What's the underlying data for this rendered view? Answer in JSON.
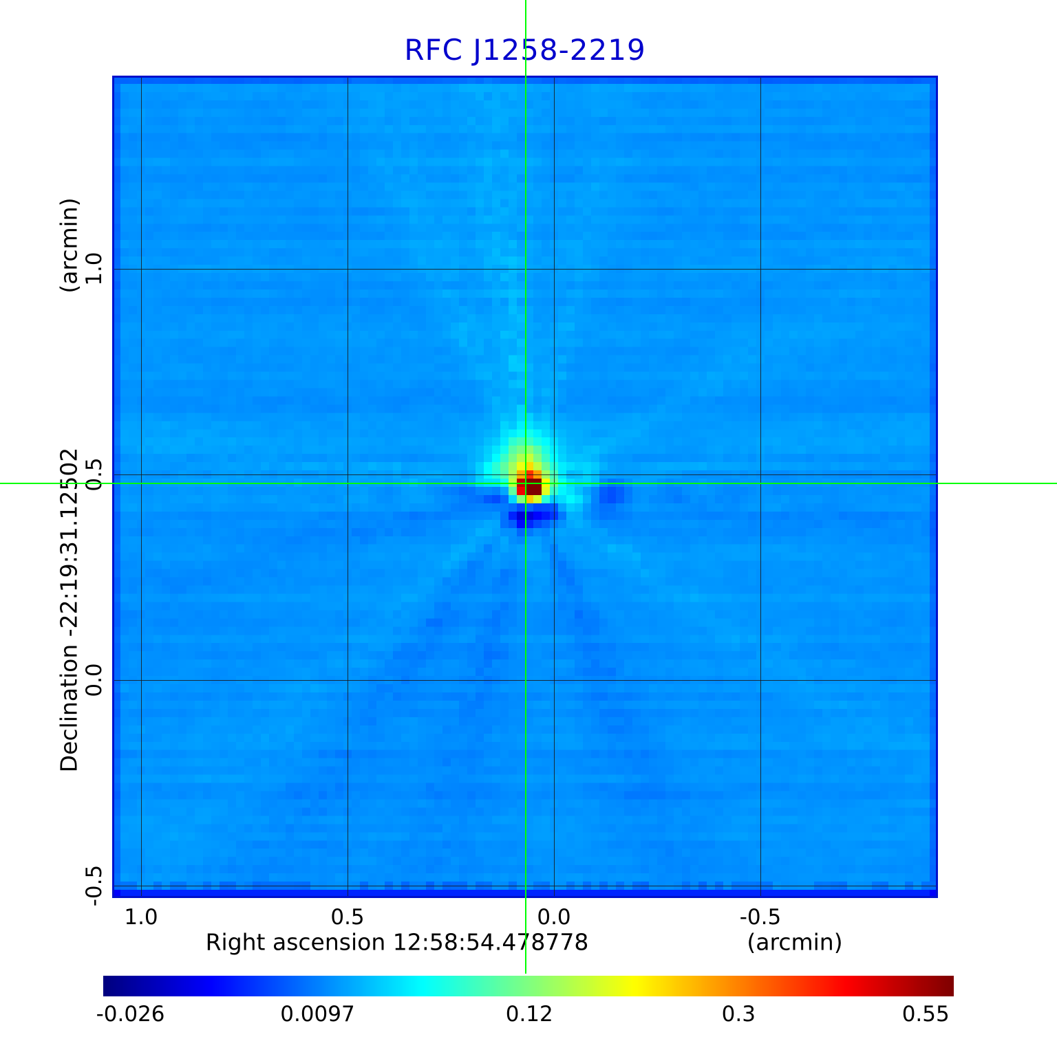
{
  "title": {
    "text": "RFC J1258-2219",
    "color": "#0000CC"
  },
  "x_axis": {
    "label": "Right ascension  12:58:54.478778",
    "unit": "(arcmin)",
    "ticks": [
      "1.0",
      "0.5",
      "0.0",
      "-0.5"
    ]
  },
  "y_axis": {
    "label": "Declination  -22:19:31.12502",
    "unit": "(arcmin)",
    "ticks": [
      "1.0",
      "0.5",
      "0.0",
      "-0.5"
    ]
  },
  "colorbar": {
    "colormap": "jet",
    "tick_labels": [
      "-0.026",
      "0.0097",
      "0.12",
      "0.3",
      "0.55"
    ],
    "tick_positions": [
      0.032,
      0.252,
      0.501,
      0.747,
      0.967
    ]
  },
  "crosshair_color": "#00FF00",
  "chart_data": {
    "type": "heatmap",
    "title": "RFC J1258-2219",
    "xlabel": "Right ascension 12:58:54.478778 (arcmin)",
    "ylabel": "Declination -22:19:31.12502 (arcmin)",
    "x_ticks": [
      1.0,
      0.5,
      0.0,
      -0.5
    ],
    "y_ticks": [
      1.0,
      0.5,
      0.0,
      -0.5
    ],
    "x_range": [
      1.07,
      -0.93
    ],
    "y_range": [
      1.47,
      -0.53
    ],
    "colormap": "jet",
    "grid": true,
    "intensity_scale": [
      -0.026,
      0.0097,
      0.12,
      0.3,
      0.55
    ],
    "background_level": 0.01,
    "peak_level": 0.55,
    "peak_position_arcmin": {
      "x": 0.068,
      "y": 0.478
    },
    "crosshair_arcmin": {
      "x": 0.068,
      "y": 0.478
    }
  }
}
